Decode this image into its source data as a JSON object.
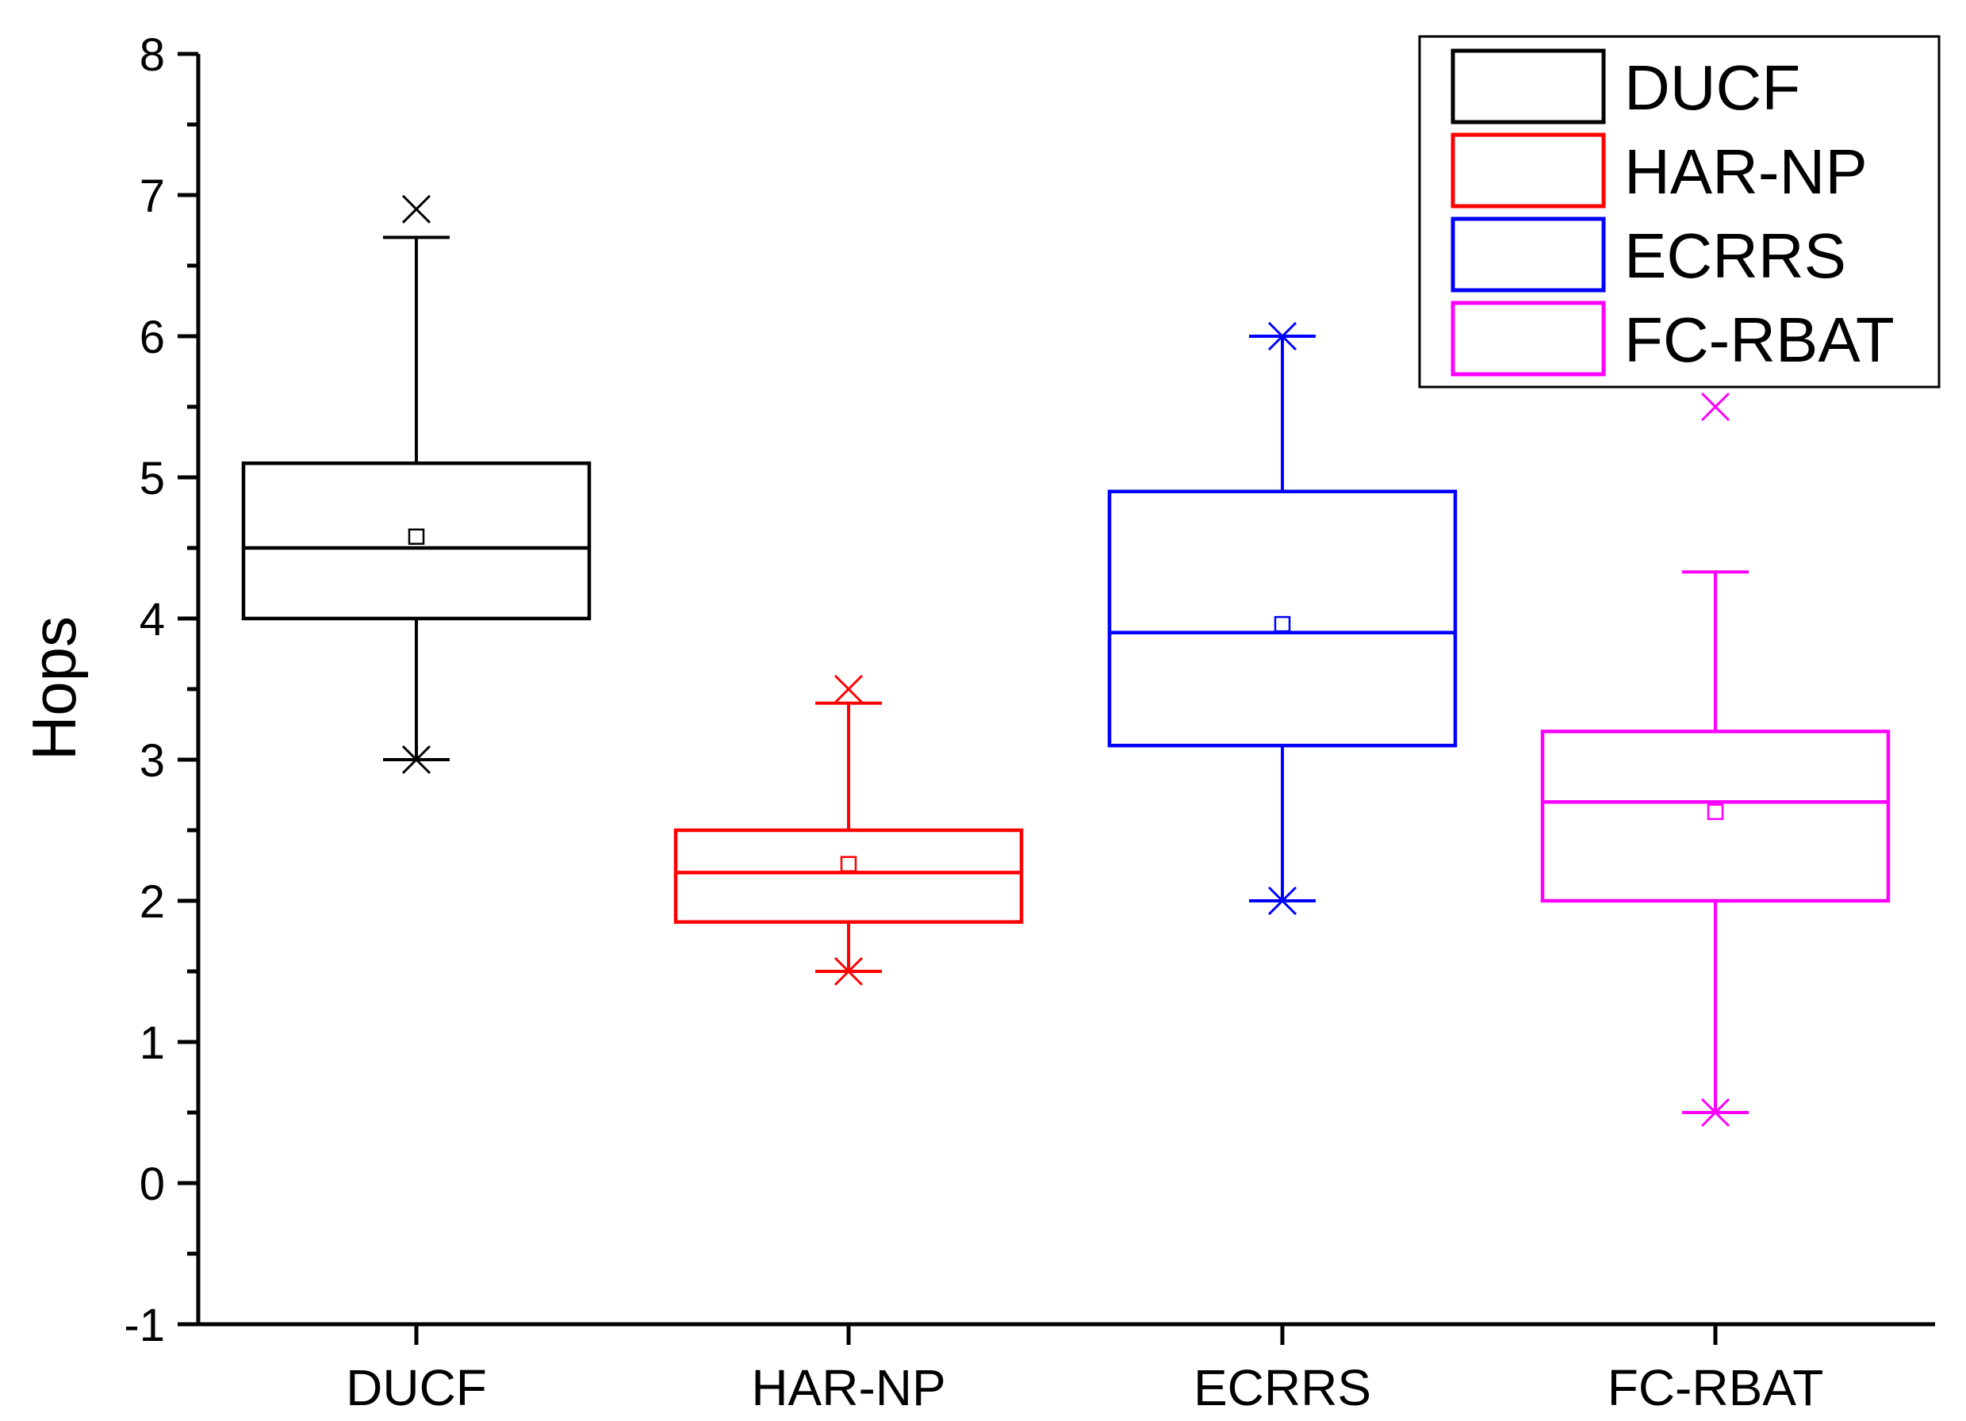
{
  "chart_data": {
    "type": "box",
    "ylabel": "Hops",
    "xlabel": "",
    "ylim": [
      -1,
      8
    ],
    "yticks": [
      "-1",
      "0",
      "1",
      "2",
      "3",
      "4",
      "5",
      "6",
      "7",
      "8"
    ],
    "categories": [
      "DUCF",
      "HAR-NP",
      "ECRRS",
      "FC-RBAT"
    ],
    "series": [
      {
        "name": "DUCF",
        "color": "#000000",
        "whisker_low": 3.0,
        "q1": 4.0,
        "median": 4.5,
        "q3": 5.1,
        "whisker_high": 6.7,
        "mean": 4.58,
        "min_marker": 3.0,
        "outlier_max": 6.9
      },
      {
        "name": "HAR-NP",
        "color": "#ff0000",
        "whisker_low": 1.5,
        "q1": 1.85,
        "median": 2.2,
        "q3": 2.5,
        "whisker_high": 3.4,
        "mean": 2.26,
        "min_marker": 1.5,
        "outlier_max": 3.5
      },
      {
        "name": "ECRRS",
        "color": "#0000ff",
        "whisker_low": 2.0,
        "q1": 3.1,
        "median": 3.9,
        "q3": 4.9,
        "whisker_high": 6.0,
        "mean": 3.96,
        "min_marker": 2.0,
        "outlier_max": 6.0
      },
      {
        "name": "FC-RBAT",
        "color": "#ff00ff",
        "whisker_low": 0.5,
        "q1": 2.0,
        "median": 2.7,
        "q3": 3.2,
        "whisker_high": 4.33,
        "mean": 2.63,
        "min_marker": 0.5,
        "outlier_max": 5.5
      }
    ],
    "legend_position": "top-right",
    "grid": false
  }
}
